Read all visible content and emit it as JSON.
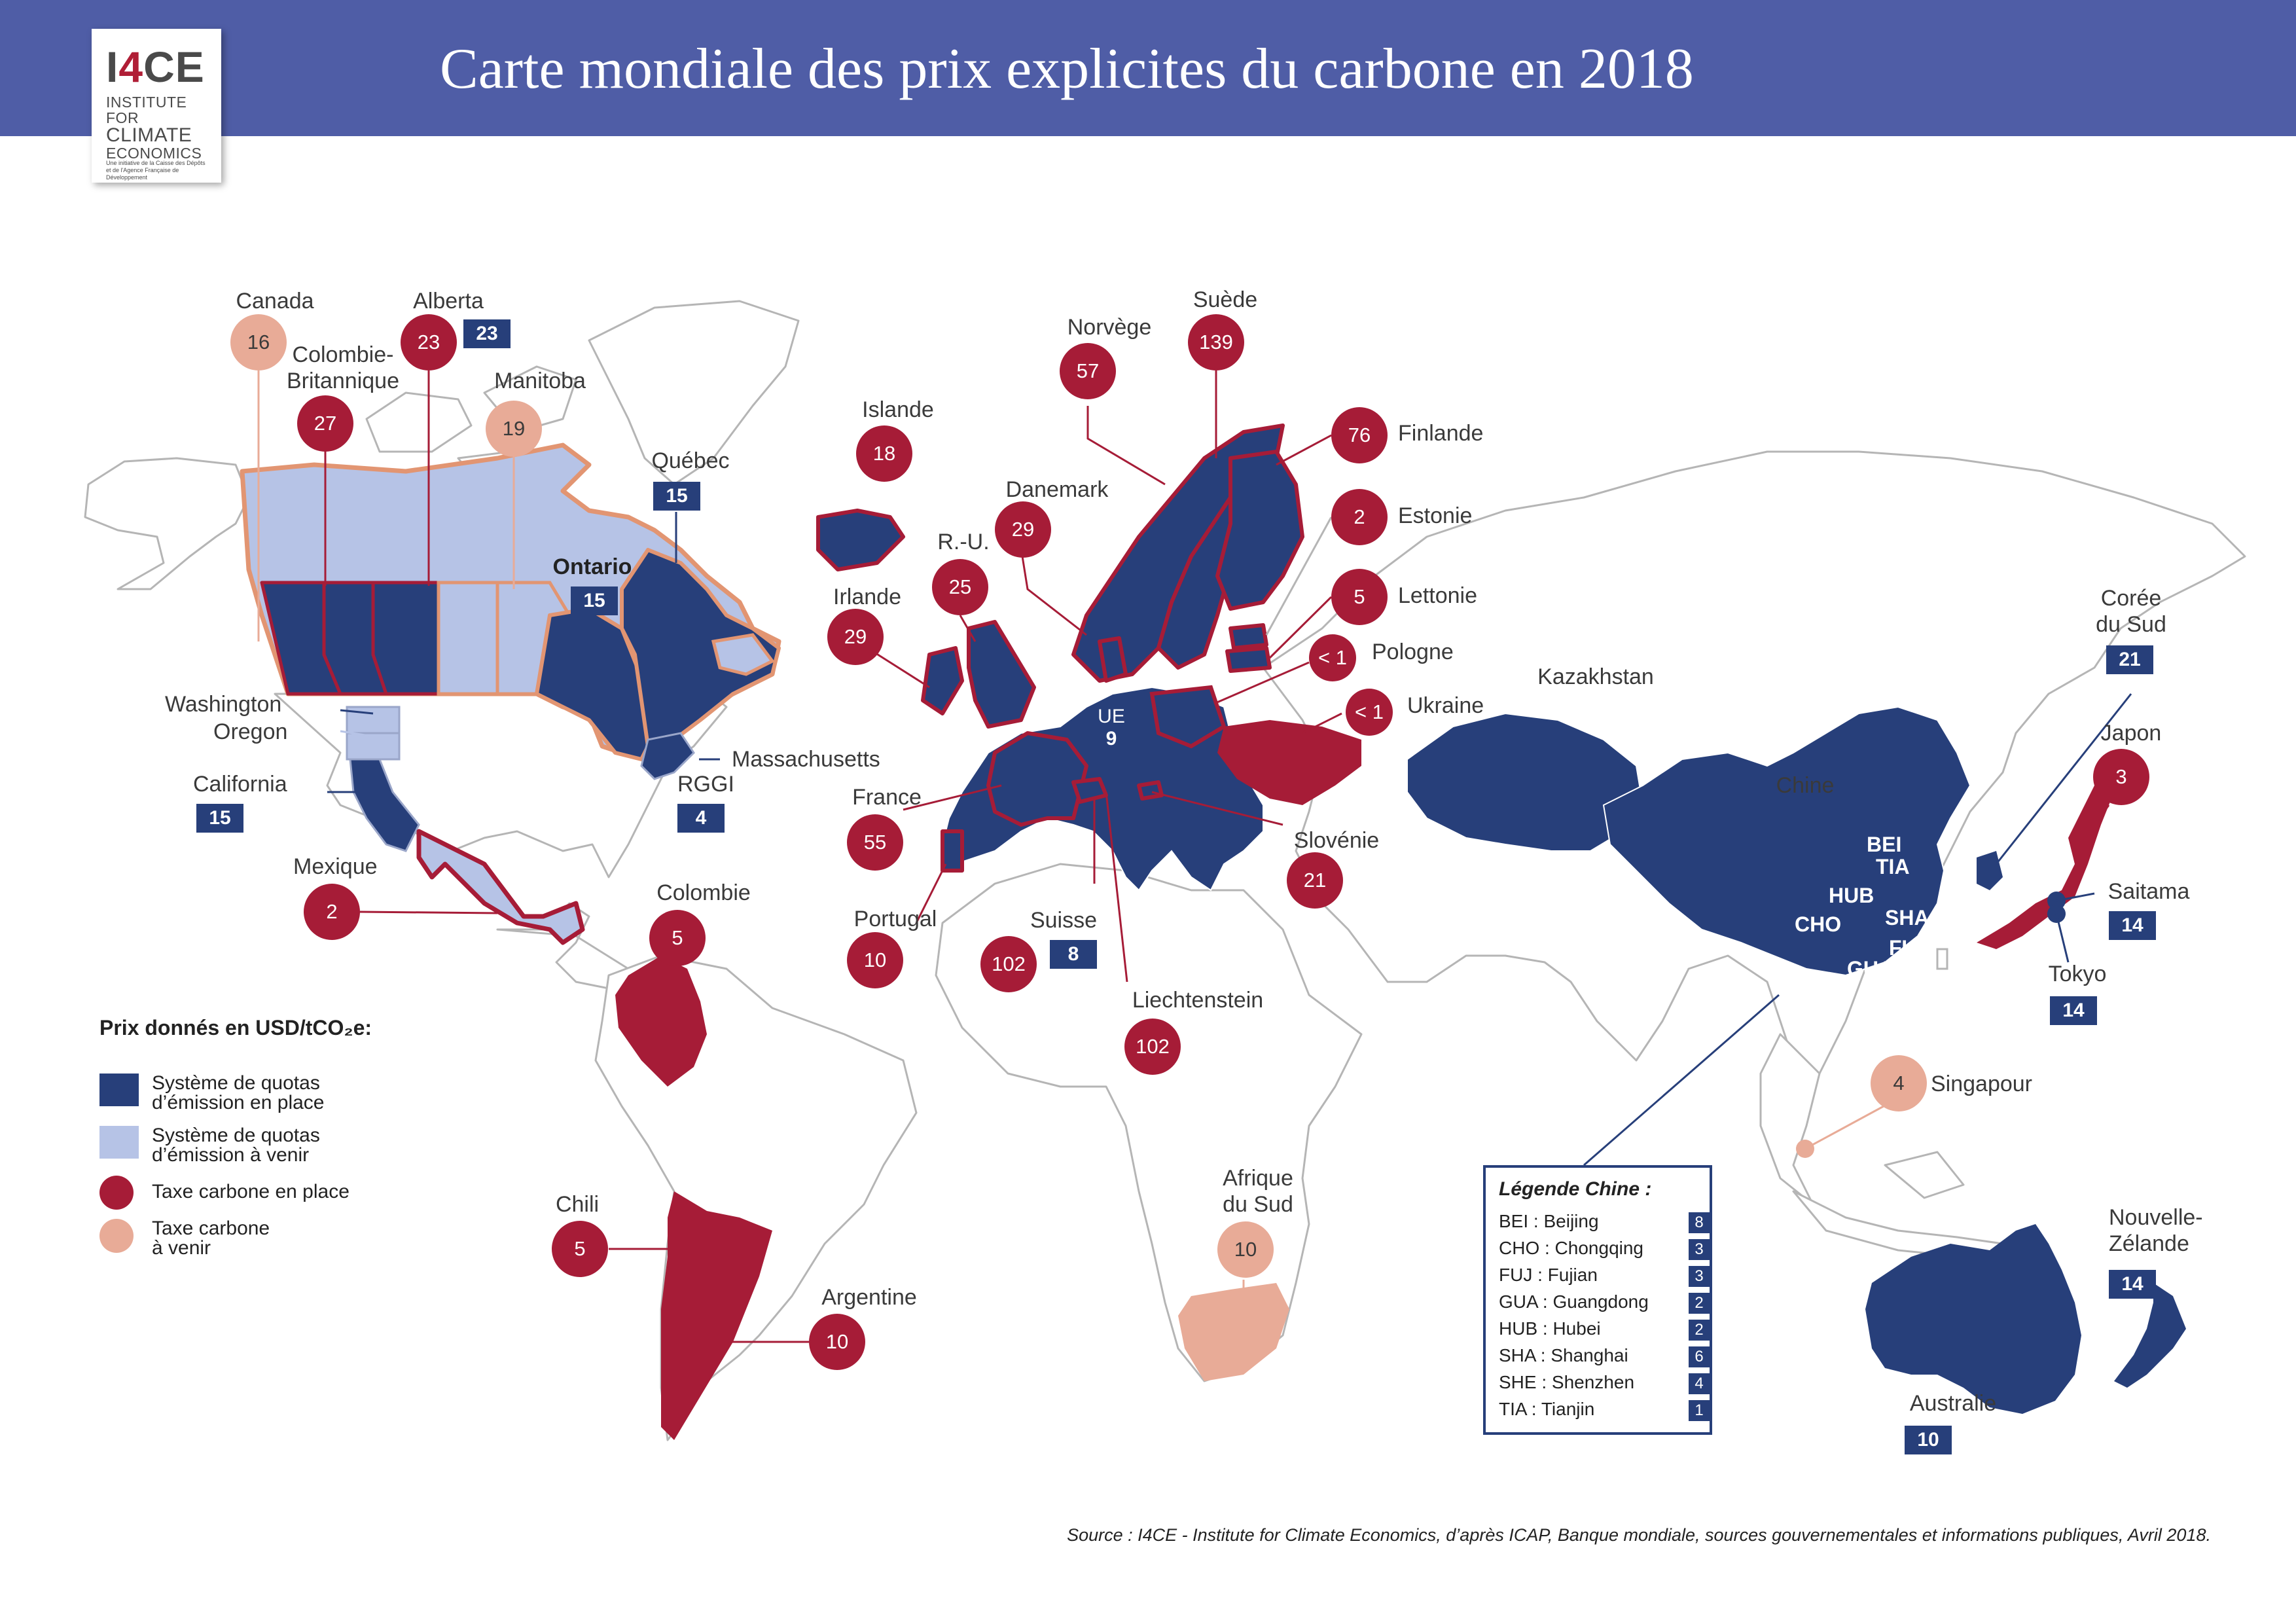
{
  "title": "Carte mondiale des prix explicites du carbone en 2018",
  "logo": {
    "mark": "I4CE",
    "name_line1": "INSTITUTE FOR",
    "name_line2": "CLIMATE",
    "name_line3": "ECONOMICS",
    "subtitle": "Une initiative de la Caisse des Dépôts et de l'Agence Française de Développement"
  },
  "colors": {
    "header": "#4f5da6",
    "ets_in_place": "#273f7a",
    "ets_upcoming": "#b6c3e6",
    "tax_in_place": "#a61c37",
    "tax_upcoming": "#e8ab97",
    "border_orange": "#e29572"
  },
  "legend": {
    "title": "Prix donnés en USD/tCO₂e:",
    "items": [
      {
        "label": "Système de quotas\nd’émission en place",
        "kind": "ets"
      },
      {
        "label": "Système de quotas\nd’émission à venir",
        "kind": "ets-next"
      },
      {
        "label": "Taxe carbone en place",
        "kind": "tax"
      },
      {
        "label": "Taxe carbone\nà venir",
        "kind": "tax-next"
      }
    ]
  },
  "jurisdictions": {
    "canada": {
      "name": "Canada",
      "value": "16"
    },
    "alberta": {
      "name": "Alberta",
      "tax": "23",
      "ets": "23"
    },
    "bc": {
      "name": "Colombie-\nBritannique",
      "value": "27"
    },
    "manitoba": {
      "name": "Manitoba",
      "value": "19"
    },
    "quebec": {
      "name": "Québec",
      "value": "15"
    },
    "ontario": {
      "name": "Ontario",
      "value": "15"
    },
    "washington": {
      "name": "Washington"
    },
    "oregon": {
      "name": "Oregon"
    },
    "california": {
      "name": "California",
      "value": "15"
    },
    "massachusetts": {
      "name": "Massachusetts"
    },
    "rggi": {
      "name": "RGGI",
      "value": "4"
    },
    "mexique": {
      "name": "Mexique",
      "value": "2"
    },
    "colombie": {
      "name": "Colombie",
      "value": "5"
    },
    "chili": {
      "name": "Chili",
      "value": "5"
    },
    "argentine": {
      "name": "Argentine",
      "value": "10"
    },
    "islande": {
      "name": "Islande",
      "value": "18"
    },
    "irlande": {
      "name": "Irlande",
      "value": "29"
    },
    "ru": {
      "name": "R.-U.",
      "value": "25"
    },
    "danemark": {
      "name": "Danemark",
      "value": "29"
    },
    "norvege": {
      "name": "Norvège",
      "value": "57"
    },
    "suede": {
      "name": "Suède",
      "value": "139"
    },
    "finlande": {
      "name": "Finlande",
      "value": "76"
    },
    "estonie": {
      "name": "Estonie",
      "value": "2"
    },
    "lettonie": {
      "name": "Lettonie",
      "value": "5"
    },
    "pologne": {
      "name": "Pologne",
      "value": "< 1"
    },
    "ukraine": {
      "name": "Ukraine",
      "value": "< 1"
    },
    "france": {
      "name": "France",
      "value": "55"
    },
    "portugal": {
      "name": "Portugal",
      "value": "10"
    },
    "suisse": {
      "name": "Suisse",
      "tax": "102",
      "ets": "8"
    },
    "liechtenstein": {
      "name": "Liechtenstein",
      "value": "102"
    },
    "slovenie": {
      "name": "Slovénie",
      "value": "21"
    },
    "ue": {
      "name": "UE",
      "value": "9"
    },
    "kazakhstan": {
      "name": "Kazakhstan"
    },
    "chine": {
      "name": "Chine"
    },
    "coree": {
      "name": "Corée\ndu Sud",
      "value": "21"
    },
    "japon": {
      "name": "Japon",
      "value": "3"
    },
    "saitama": {
      "name": "Saitama",
      "value": "14"
    },
    "tokyo": {
      "name": "Tokyo",
      "value": "14"
    },
    "singapour": {
      "name": "Singapour",
      "value": "4"
    },
    "afrique_sud": {
      "name": "Afrique\ndu Sud",
      "value": "10"
    },
    "nz": {
      "name": "Nouvelle-\nZélande",
      "value": "14"
    },
    "australie": {
      "name": "Australie",
      "value": "10"
    }
  },
  "china_codes": [
    "BEI",
    "TIA",
    "HUB",
    "SHA",
    "CHO",
    "FUJ",
    "GUA",
    "SHE"
  ],
  "china_legend": {
    "title": "Légende Chine :",
    "rows": [
      {
        "label": "BEI : Beijing",
        "value": "8"
      },
      {
        "label": "CHO : Chongqing",
        "value": "3"
      },
      {
        "label": "FUJ : Fujian",
        "value": "3"
      },
      {
        "label": "GUA : Guangdong",
        "value": "2"
      },
      {
        "label": "HUB : Hubei",
        "value": "2"
      },
      {
        "label": "SHA : Shanghai",
        "value": "6"
      },
      {
        "label": "SHE : Shenzhen",
        "value": "4"
      },
      {
        "label": "TIA : Tianjin",
        "value": "1"
      }
    ]
  },
  "source": "Source : I4CE - Institute for Climate Economics, d’après ICAP, Banque mondiale, sources gouvernementales et informations publiques, Avril 2018."
}
